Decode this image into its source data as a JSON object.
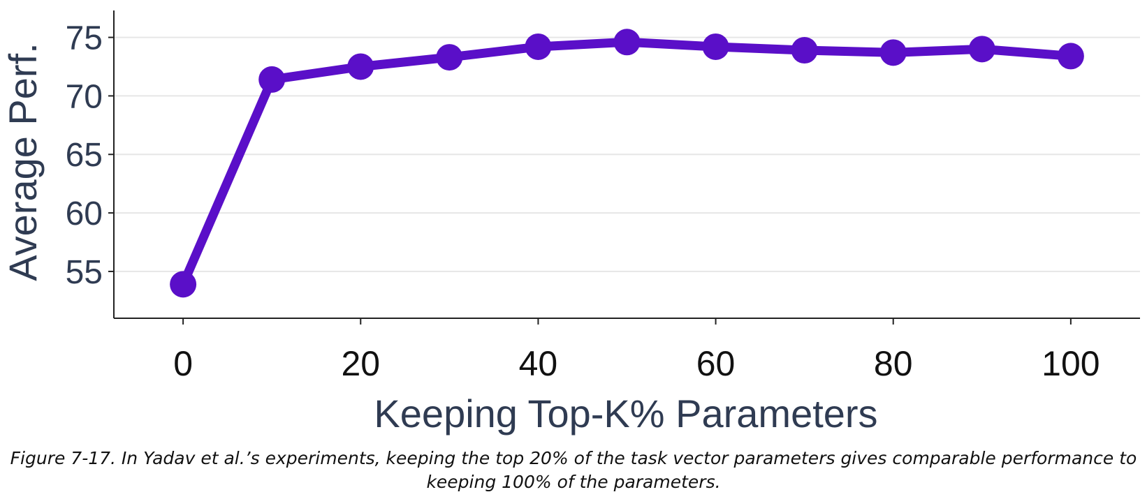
{
  "chart_data": {
    "type": "line",
    "xlabel": "Keeping Top-K% Parameters",
    "ylabel": "Average Perf.",
    "x": [
      0,
      10,
      20,
      30,
      40,
      50,
      60,
      70,
      80,
      90,
      100
    ],
    "series": [
      {
        "values": [
          53.9,
          71.4,
          72.5,
          73.3,
          74.2,
          74.6,
          74.2,
          73.9,
          73.7,
          74.0,
          73.4
        ]
      }
    ],
    "xticks": [
      0,
      20,
      40,
      60,
      80,
      100
    ],
    "yticks": [
      55,
      60,
      65,
      70,
      75
    ],
    "xlim": [
      -7.8,
      107.8
    ],
    "ylim": [
      51.0,
      77.3
    ],
    "grid": true,
    "color": "#5a0fc8"
  },
  "caption": "Figure 7-17. In Yadav et al.’s experiments, keeping the top 20% of the task vector parameters gives comparable performance to keeping 100% of the parameters."
}
